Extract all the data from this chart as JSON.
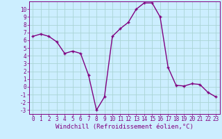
{
  "x": [
    0,
    1,
    2,
    3,
    4,
    5,
    6,
    7,
    8,
    9,
    10,
    11,
    12,
    13,
    14,
    15,
    16,
    17,
    18,
    19,
    20,
    21,
    22,
    23
  ],
  "y": [
    6.5,
    6.8,
    6.5,
    5.8,
    4.3,
    4.6,
    4.3,
    1.5,
    -3.0,
    -1.3,
    6.5,
    7.5,
    8.3,
    10.0,
    10.8,
    10.8,
    9.0,
    2.5,
    0.2,
    0.1,
    0.4,
    0.3,
    -0.7,
    -1.3
  ],
  "line_color": "#800080",
  "marker": "+",
  "bg_color": "#cceeff",
  "grid_color": "#aad4d4",
  "xlabel": "Windchill (Refroidissement éolien,°C)",
  "xlim": [
    -0.5,
    23.5
  ],
  "ylim": [
    -3.5,
    11.0
  ],
  "yticks": [
    10,
    9,
    8,
    7,
    6,
    5,
    4,
    3,
    2,
    1,
    0,
    -1,
    -2,
    -3
  ],
  "xticks": [
    0,
    1,
    2,
    3,
    4,
    5,
    6,
    7,
    8,
    9,
    10,
    11,
    12,
    13,
    14,
    15,
    16,
    17,
    18,
    19,
    20,
    21,
    22,
    23
  ],
  "axis_color": "#800080",
  "tick_color": "#800080",
  "label_color": "#800080",
  "font_family": "monospace",
  "tick_fontsize": 5.5,
  "xlabel_fontsize": 6.5,
  "linewidth": 1.0,
  "markersize": 3.5,
  "markeredgewidth": 1.0
}
